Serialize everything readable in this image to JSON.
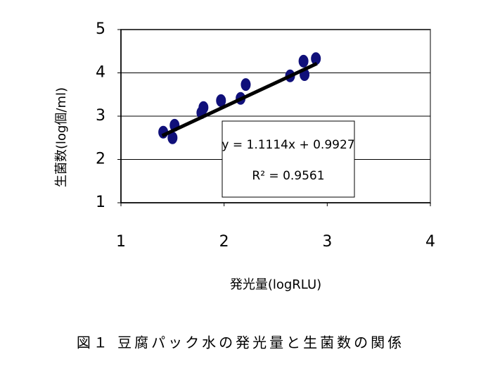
{
  "chart_data": {
    "type": "scatter",
    "x_label": "発光量(logRLU)",
    "y_label": "生菌数(log個/ml)",
    "caption": "図１ 豆腐パック水の発光量と生菌数の関係",
    "series": [
      {
        "color": "#10107a",
        "x": [
          1.41,
          1.5,
          1.52,
          1.78,
          1.8,
          1.97,
          2.16,
          2.21,
          2.64,
          2.78,
          2.77,
          2.89
        ],
        "values": [
          2.63,
          2.5,
          2.79,
          3.08,
          3.2,
          3.36,
          3.41,
          3.73,
          3.93,
          3.96,
          4.27,
          4.33
        ]
      }
    ],
    "trendline": {
      "x": [
        1.4,
        2.9
      ],
      "slope": 1.1114,
      "intercept": 0.9927,
      "color": "#000000",
      "equation": "y = 1.1114x + 0.9927",
      "r2": "R² = 0.9561"
    },
    "xlim": [
      1,
      4
    ],
    "xticks": [
      1,
      2,
      3,
      4
    ],
    "ylim": [
      1,
      5
    ],
    "yticks": [
      1,
      2,
      3,
      4,
      5
    ],
    "grid": true
  }
}
